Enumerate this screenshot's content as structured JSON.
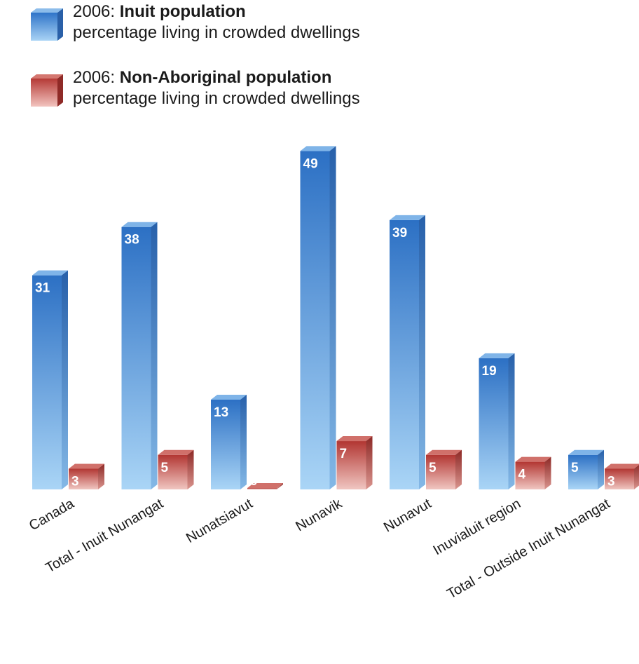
{
  "legend": [
    {
      "year": "2006:",
      "name": "Inuit population",
      "desc": "percentage living in crowded dwellings",
      "color": "#2f74c8"
    },
    {
      "year": "2006:",
      "name": "Non-Aboriginal population",
      "desc": "percentage living in crowded dwellings",
      "color": "#b53a36"
    }
  ],
  "chart_data": {
    "type": "bar",
    "categories": [
      "Canada",
      "Total - Inuit Nunangat",
      "Nunatsiavut",
      "Nunavik",
      "Nunavut",
      "Inuvialuit region",
      "Total - Outside Inuit Nunangat"
    ],
    "series": [
      {
        "name": "Inuit population",
        "values": [
          31,
          38,
          13,
          49,
          39,
          19,
          5
        ],
        "color": "#2f74c8"
      },
      {
        "name": "Non-Aboriginal population",
        "values": [
          3,
          5,
          0,
          7,
          5,
          4,
          3
        ],
        "color": "#b53a36"
      }
    ],
    "title": "",
    "xlabel": "",
    "ylabel": "",
    "data_labels": true
  }
}
